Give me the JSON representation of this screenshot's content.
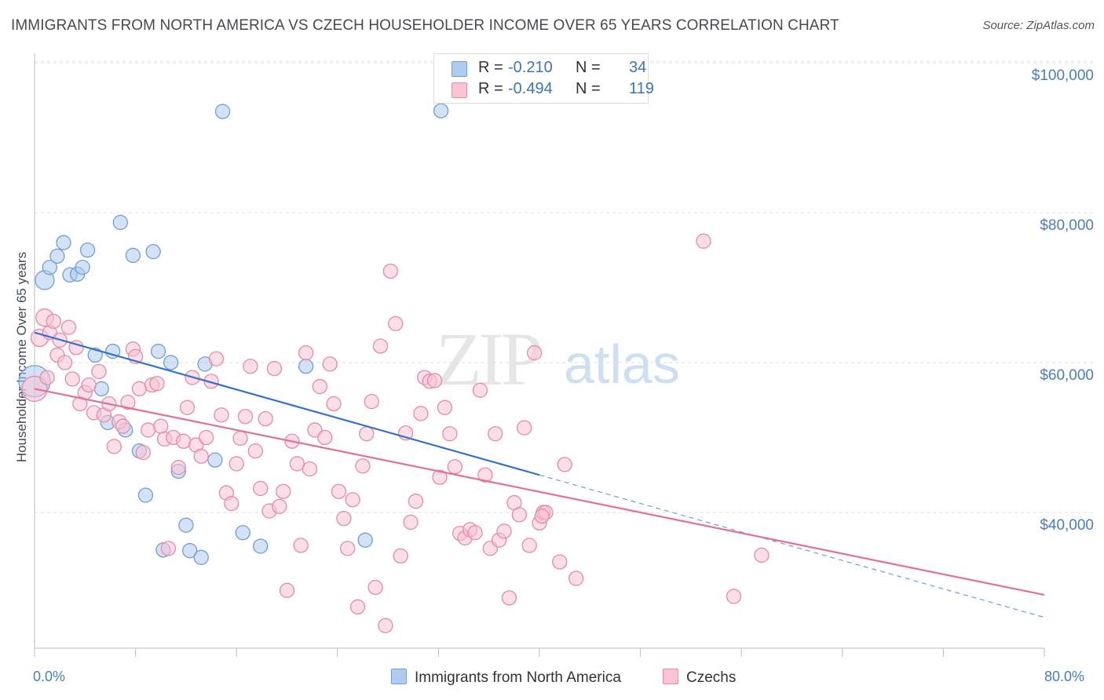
{
  "title": "IMMIGRANTS FROM NORTH AMERICA VS CZECH HOUSEHOLDER INCOME OVER 65 YEARS CORRELATION CHART",
  "source": "Source: ZipAtlas.com",
  "watermark": {
    "zip": "ZIP",
    "atlas": "atlas"
  },
  "legend": {
    "rows": [
      {
        "r_label": "R =",
        "r_value": "-0.210",
        "n_label": "N =",
        "n_value": "34",
        "color": "#aecbf0",
        "border": "#6e9fd8"
      },
      {
        "r_label": "R =",
        "r_value": "-0.494",
        "n_label": "N =",
        "n_value": "119",
        "color": "#f8c3d3",
        "border": "#e88aa8"
      }
    ]
  },
  "bottom_legend": [
    {
      "label": "Immigrants from North America",
      "color": "#aecbf0",
      "border": "#6e9fd8"
    },
    {
      "label": "Czechs",
      "color": "#f8c3d3",
      "border": "#e88aa8"
    }
  ],
  "chart_data": {
    "type": "scatter",
    "ylabel": "Householder Income Over 65 years",
    "x_tick_labels": [
      "0.0%",
      "80.0%"
    ],
    "y_tick_labels": [
      "$100,000",
      "$80,000",
      "$60,000",
      "$40,000"
    ],
    "xlim": [
      0,
      80
    ],
    "ylim": [
      20000,
      102000
    ],
    "grid": true,
    "series": [
      {
        "name": "Immigrants from North America",
        "color": "#6e9fd8",
        "fill": "#aecbf0",
        "points": [
          [
            0.0,
            57500,
            20
          ],
          [
            0.8,
            71000,
            12
          ],
          [
            1.2,
            72700,
            9
          ],
          [
            1.8,
            74200,
            9
          ],
          [
            2.3,
            76000,
            9
          ],
          [
            2.8,
            71700,
            9
          ],
          [
            3.4,
            71800,
            9
          ],
          [
            3.8,
            72700,
            9
          ],
          [
            4.2,
            75000,
            9
          ],
          [
            4.8,
            61000,
            9
          ],
          [
            5.3,
            56500,
            9
          ],
          [
            5.8,
            52000,
            9
          ],
          [
            6.2,
            61500,
            9
          ],
          [
            6.8,
            78700,
            9
          ],
          [
            7.2,
            51000,
            9
          ],
          [
            7.8,
            74300,
            9
          ],
          [
            8.3,
            48200,
            9
          ],
          [
            8.8,
            42300,
            9
          ],
          [
            9.4,
            74800,
            9
          ],
          [
            9.8,
            61500,
            9
          ],
          [
            10.2,
            35000,
            9
          ],
          [
            10.8,
            60000,
            9
          ],
          [
            11.4,
            45500,
            9
          ],
          [
            12.0,
            38300,
            9
          ],
          [
            12.3,
            34900,
            9
          ],
          [
            13.2,
            34000,
            9
          ],
          [
            13.5,
            59800,
            9
          ],
          [
            14.3,
            47000,
            9
          ],
          [
            14.9,
            93500,
            9
          ],
          [
            16.5,
            37300,
            9
          ],
          [
            17.9,
            35500,
            9
          ],
          [
            21.5,
            59500,
            9
          ],
          [
            26.2,
            36300,
            9
          ],
          [
            32.2,
            93600,
            9
          ]
        ],
        "trend": {
          "x": [
            0,
            40
          ],
          "y": [
            64000,
            45000
          ]
        },
        "trend_dashed": {
          "x": [
            40,
            80
          ],
          "y": [
            45000,
            26000
          ]
        }
      },
      {
        "name": "Czechs",
        "color": "#e88aa8",
        "fill": "#f8c3d3",
        "points": [
          [
            0.0,
            56500,
            16
          ],
          [
            0.4,
            63300,
            11
          ],
          [
            0.8,
            66000,
            11
          ],
          [
            1.0,
            58000,
            9
          ],
          [
            1.2,
            64000,
            9
          ],
          [
            1.5,
            65500,
            9
          ],
          [
            1.8,
            61000,
            9
          ],
          [
            2.0,
            63000,
            9
          ],
          [
            2.4,
            60000,
            9
          ],
          [
            2.7,
            64700,
            9
          ],
          [
            3.0,
            57800,
            9
          ],
          [
            3.3,
            62000,
            9
          ],
          [
            3.6,
            54500,
            9
          ],
          [
            4.0,
            56000,
            9
          ],
          [
            4.3,
            57000,
            9
          ],
          [
            4.7,
            53300,
            9
          ],
          [
            5.1,
            58800,
            9
          ],
          [
            5.5,
            53000,
            9
          ],
          [
            5.9,
            54500,
            9
          ],
          [
            6.3,
            48800,
            9
          ],
          [
            6.7,
            52100,
            9
          ],
          [
            7.0,
            51500,
            9
          ],
          [
            7.4,
            54700,
            9
          ],
          [
            7.8,
            61800,
            9
          ],
          [
            8.0,
            60800,
            9
          ],
          [
            8.3,
            56500,
            9
          ],
          [
            8.6,
            48000,
            9
          ],
          [
            9.0,
            51000,
            9
          ],
          [
            9.3,
            57000,
            9
          ],
          [
            9.7,
            57200,
            9
          ],
          [
            10.0,
            51500,
            9
          ],
          [
            10.3,
            49800,
            9
          ],
          [
            10.6,
            35200,
            9
          ],
          [
            11.0,
            50000,
            9
          ],
          [
            11.4,
            46000,
            9
          ],
          [
            11.8,
            49500,
            9
          ],
          [
            12.1,
            54000,
            9
          ],
          [
            12.5,
            58000,
            9
          ],
          [
            12.8,
            49000,
            9
          ],
          [
            13.2,
            47500,
            9
          ],
          [
            13.6,
            50000,
            9
          ],
          [
            14.0,
            57500,
            9
          ],
          [
            14.4,
            60500,
            9
          ],
          [
            14.8,
            53000,
            9
          ],
          [
            15.2,
            42600,
            9
          ],
          [
            15.6,
            41200,
            9
          ],
          [
            16.0,
            46500,
            9
          ],
          [
            16.3,
            49900,
            9
          ],
          [
            16.7,
            52800,
            9
          ],
          [
            17.1,
            59500,
            9
          ],
          [
            17.5,
            48200,
            9
          ],
          [
            17.9,
            43200,
            9
          ],
          [
            18.3,
            52500,
            9
          ],
          [
            18.6,
            40200,
            9
          ],
          [
            19.0,
            59200,
            9
          ],
          [
            19.4,
            40800,
            9
          ],
          [
            19.7,
            42800,
            9
          ],
          [
            20.0,
            29600,
            9
          ],
          [
            20.4,
            49500,
            9
          ],
          [
            20.8,
            46500,
            9
          ],
          [
            21.1,
            35600,
            9
          ],
          [
            21.5,
            61300,
            9
          ],
          [
            21.8,
            45800,
            9
          ],
          [
            22.2,
            51000,
            9
          ],
          [
            22.6,
            56800,
            9
          ],
          [
            23.0,
            50000,
            9
          ],
          [
            23.4,
            59800,
            9
          ],
          [
            23.7,
            54500,
            9
          ],
          [
            24.1,
            42800,
            9
          ],
          [
            24.5,
            39200,
            9
          ],
          [
            24.8,
            35200,
            9
          ],
          [
            25.2,
            41700,
            9
          ],
          [
            25.6,
            27400,
            9
          ],
          [
            26.0,
            46200,
            9
          ],
          [
            26.3,
            50500,
            9
          ],
          [
            26.7,
            54800,
            9
          ],
          [
            27.0,
            30000,
            9
          ],
          [
            27.4,
            62200,
            9
          ],
          [
            27.8,
            24900,
            9
          ],
          [
            28.2,
            72200,
            9
          ],
          [
            28.6,
            65200,
            9
          ],
          [
            29.0,
            34200,
            9
          ],
          [
            29.4,
            50600,
            9
          ],
          [
            29.8,
            38700,
            9
          ],
          [
            30.2,
            41500,
            9
          ],
          [
            30.6,
            53200,
            9
          ],
          [
            30.9,
            58000,
            9
          ],
          [
            31.3,
            57500,
            9
          ],
          [
            31.7,
            57600,
            9
          ],
          [
            32.1,
            44700,
            9
          ],
          [
            32.5,
            54000,
            9
          ],
          [
            32.9,
            50500,
            9
          ],
          [
            33.3,
            46100,
            9
          ],
          [
            33.7,
            37200,
            9
          ],
          [
            34.1,
            36600,
            9
          ],
          [
            34.5,
            37700,
            9
          ],
          [
            34.9,
            37300,
            9
          ],
          [
            35.3,
            56300,
            9
          ],
          [
            35.7,
            45000,
            9
          ],
          [
            36.1,
            35200,
            9
          ],
          [
            36.5,
            50500,
            9
          ],
          [
            36.8,
            36300,
            9
          ],
          [
            37.2,
            37500,
            9
          ],
          [
            37.6,
            28600,
            9
          ],
          [
            38.0,
            41300,
            9
          ],
          [
            38.4,
            39700,
            9
          ],
          [
            38.8,
            51300,
            9
          ],
          [
            39.2,
            35600,
            9
          ],
          [
            39.6,
            61300,
            9
          ],
          [
            40.0,
            38600,
            9
          ],
          [
            40.3,
            40000,
            9
          ],
          [
            41.6,
            33400,
            9
          ],
          [
            42.9,
            31200,
            9
          ],
          [
            53.0,
            76200,
            9
          ],
          [
            55.4,
            28800,
            9
          ],
          [
            57.6,
            34300,
            9
          ],
          [
            42.0,
            46400,
            9
          ],
          [
            40.5,
            40000,
            9
          ],
          [
            40.2,
            39500,
            9
          ]
        ],
        "trend": {
          "x": [
            0,
            80
          ],
          "y": [
            56500,
            29000
          ]
        }
      }
    ]
  }
}
